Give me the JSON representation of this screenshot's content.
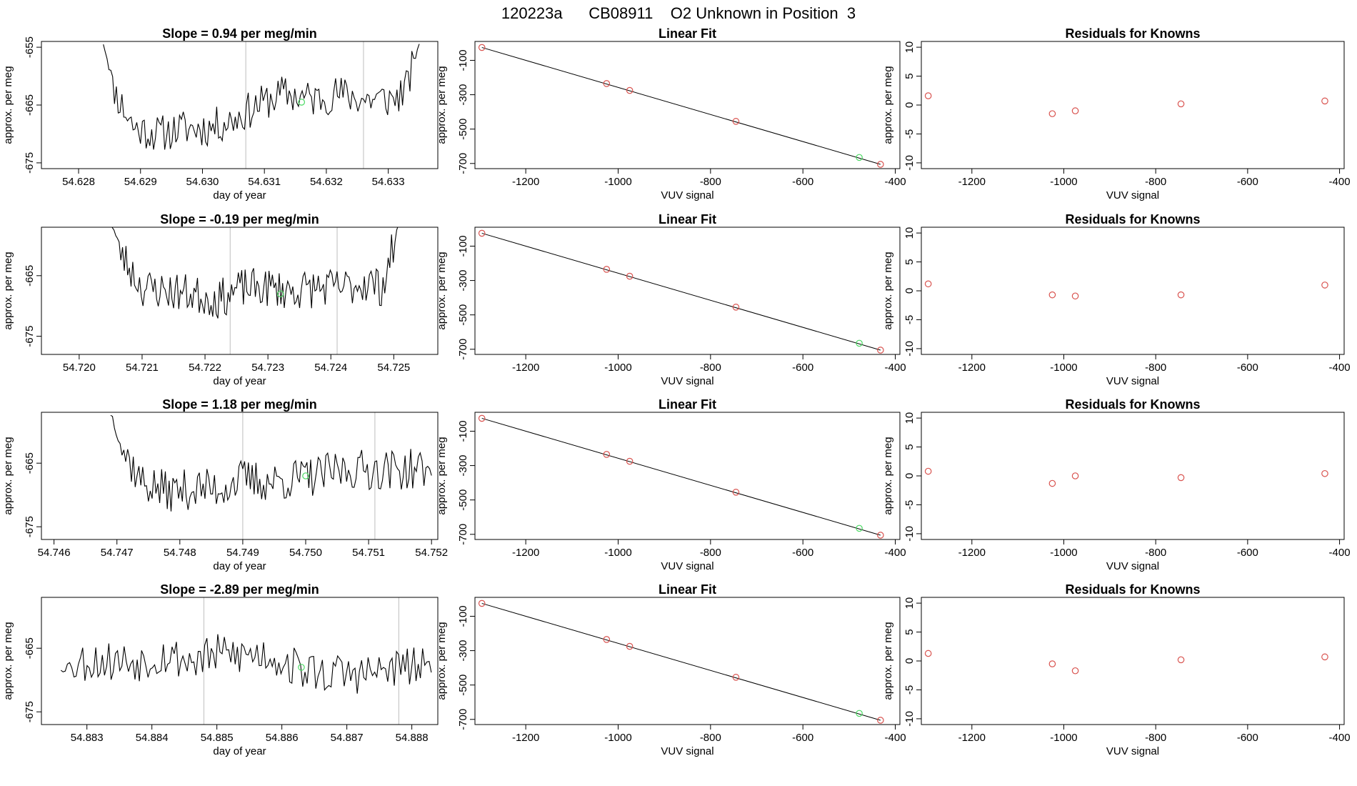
{
  "page_title": "120223a      CB08911    O2 Unknown in Position  3",
  "colors": {
    "trace": "#000000",
    "marker_known": "#d9534f",
    "marker_unknown": "#4cd964",
    "vline": "#c8c8c8"
  },
  "chart_data": [
    {
      "type": "line",
      "row": 0,
      "panel": "time",
      "title": "Slope =  0.94  per meg/min",
      "xlabel": "day of year",
      "ylabel": "approx. per meg",
      "xlim": [
        54.6274,
        54.6338
      ],
      "ylim": [
        -676,
        -654
      ],
      "xticks": [
        "54.628",
        "54.629",
        "54.630",
        "54.631",
        "54.632",
        "54.633"
      ],
      "yticks": [
        "-655",
        "-665",
        "-675"
      ],
      "vlines": [
        54.6307,
        54.6326
      ],
      "green_point": [
        54.6316,
        -664.5
      ],
      "trace_start": 54.6284,
      "trace_end": 54.6335,
      "trace_seed": 11,
      "trace_profile": [
        [
          54.6284,
          -654
        ],
        [
          54.6286,
          -663
        ],
        [
          54.6289,
          -669
        ],
        [
          54.6293,
          -670
        ],
        [
          54.6297,
          -669
        ],
        [
          54.6301,
          -669
        ],
        [
          54.6305,
          -667.5
        ],
        [
          54.6309,
          -665
        ],
        [
          54.6313,
          -663
        ],
        [
          54.6318,
          -664
        ],
        [
          54.6322,
          -663
        ],
        [
          54.6326,
          -664
        ],
        [
          54.6329,
          -664
        ],
        [
          54.6331,
          -664
        ],
        [
          54.6333,
          -662
        ],
        [
          54.6335,
          -654
        ]
      ]
    },
    {
      "type": "scatter",
      "row": 0,
      "panel": "fit",
      "title": "Linear Fit",
      "xlabel": "VUV signal",
      "ylabel": "approx. per meg",
      "xlim": [
        -1310,
        -390
      ],
      "ylim": [
        -730,
        10
      ],
      "xticks": [
        "-1200",
        "-1000",
        "-800",
        "-600",
        "-400"
      ],
      "yticks": [
        "-100",
        "-300",
        "-500",
        "-700"
      ],
      "fit_line": [
        [
          -1295,
          -25
        ],
        [
          -432,
          -705
        ]
      ],
      "known_points": [
        [
          -1295,
          -25
        ],
        [
          -1025,
          -235
        ],
        [
          -975,
          -275
        ],
        [
          -745,
          -455
        ],
        [
          -432,
          -705
        ]
      ],
      "unknown_point": [
        -478,
        -665
      ]
    },
    {
      "type": "scatter",
      "row": 0,
      "panel": "residuals",
      "title": "Residuals for Knowns",
      "xlabel": "VUV signal",
      "ylabel": "approx. per meg",
      "xlim": [
        -1310,
        -390
      ],
      "ylim": [
        -11,
        11
      ],
      "xticks": [
        "-1200",
        "-1000",
        "-800",
        "-600",
        "-400"
      ],
      "yticks": [
        "10",
        "5",
        "0",
        "-5",
        "-10"
      ],
      "points": [
        [
          -1295,
          1.6
        ],
        [
          -1025,
          -1.5
        ],
        [
          -975,
          -1.0
        ],
        [
          -745,
          0.2
        ],
        [
          -432,
          0.7
        ]
      ]
    },
    {
      "type": "line",
      "row": 1,
      "panel": "time",
      "title": "Slope =  -0.19  per meg/min",
      "xlabel": "day of year",
      "ylabel": "approx. per meg",
      "xlim": [
        54.7194,
        54.7257
      ],
      "ylim": [
        -678,
        -657
      ],
      "xticks": [
        "54.720",
        "54.721",
        "54.722",
        "54.723",
        "54.724",
        "54.725"
      ],
      "yticks": [
        "-665",
        "-675"
      ],
      "vlines": [
        54.7224,
        54.7241
      ],
      "green_point": [
        54.7232,
        -668
      ],
      "trace_start": 54.7205,
      "trace_end": 54.7251,
      "trace_seed": 23,
      "trace_profile": [
        [
          54.7205,
          -656
        ],
        [
          54.7207,
          -662
        ],
        [
          54.721,
          -667
        ],
        [
          54.7214,
          -667.5
        ],
        [
          54.7218,
          -668
        ],
        [
          54.7222,
          -669
        ],
        [
          54.7226,
          -667
        ],
        [
          54.723,
          -667
        ],
        [
          54.7234,
          -667.5
        ],
        [
          54.7238,
          -667
        ],
        [
          54.7242,
          -667
        ],
        [
          54.7246,
          -666
        ],
        [
          54.7248,
          -667
        ],
        [
          54.7249,
          -664
        ],
        [
          54.7251,
          -656
        ]
      ]
    },
    {
      "type": "scatter",
      "row": 1,
      "panel": "fit",
      "title": "Linear Fit",
      "xlabel": "VUV signal",
      "ylabel": "approx. per meg",
      "xlim": [
        -1310,
        -390
      ],
      "ylim": [
        -730,
        10
      ],
      "xticks": [
        "-1200",
        "-1000",
        "-800",
        "-600",
        "-400"
      ],
      "yticks": [
        "-100",
        "-300",
        "-500",
        "-700"
      ],
      "fit_line": [
        [
          -1295,
          -25
        ],
        [
          -432,
          -705
        ]
      ],
      "known_points": [
        [
          -1295,
          -25
        ],
        [
          -1025,
          -235
        ],
        [
          -975,
          -275
        ],
        [
          -745,
          -455
        ],
        [
          -432,
          -705
        ]
      ],
      "unknown_point": [
        -478,
        -665
      ]
    },
    {
      "type": "scatter",
      "row": 1,
      "panel": "residuals",
      "title": "Residuals for Knowns",
      "xlabel": "VUV signal",
      "ylabel": "approx. per meg",
      "xlim": [
        -1310,
        -390
      ],
      "ylim": [
        -11,
        11
      ],
      "xticks": [
        "-1200",
        "-1000",
        "-800",
        "-600",
        "-400"
      ],
      "yticks": [
        "10",
        "5",
        "0",
        "-5",
        "-10"
      ],
      "points": [
        [
          -1295,
          1.2
        ],
        [
          -1025,
          -0.7
        ],
        [
          -975,
          -0.9
        ],
        [
          -745,
          -0.7
        ],
        [
          -432,
          1.0
        ]
      ]
    },
    {
      "type": "line",
      "row": 2,
      "panel": "time",
      "title": "Slope =  1.18  per meg/min",
      "xlabel": "day of year",
      "ylabel": "approx. per meg",
      "xlim": [
        54.7458,
        54.7521
      ],
      "ylim": [
        -677,
        -657
      ],
      "xticks": [
        "54.746",
        "54.747",
        "54.748",
        "54.749",
        "54.750",
        "54.751",
        "54.752"
      ],
      "yticks": [
        "-665",
        "-675"
      ],
      "vlines": [
        54.749,
        54.7511
      ],
      "green_point": [
        54.75,
        -667
      ],
      "trace_start": 54.7469,
      "trace_end": 54.752,
      "trace_seed": 37,
      "trace_profile": [
        [
          54.7469,
          -657
        ],
        [
          54.7471,
          -663
        ],
        [
          54.7474,
          -668
        ],
        [
          54.7478,
          -669.5
        ],
        [
          54.7482,
          -669
        ],
        [
          54.7486,
          -669
        ],
        [
          54.749,
          -667.5
        ],
        [
          54.7494,
          -668
        ],
        [
          54.7498,
          -667.5
        ],
        [
          54.7502,
          -667
        ],
        [
          54.7506,
          -666
        ],
        [
          54.751,
          -666
        ],
        [
          54.7514,
          -666
        ],
        [
          54.7518,
          -666
        ],
        [
          54.752,
          -666
        ]
      ]
    },
    {
      "type": "scatter",
      "row": 2,
      "panel": "fit",
      "title": "Linear Fit",
      "xlabel": "VUV signal",
      "ylabel": "approx. per meg",
      "xlim": [
        -1310,
        -390
      ],
      "ylim": [
        -730,
        10
      ],
      "xticks": [
        "-1200",
        "-1000",
        "-800",
        "-600",
        "-400"
      ],
      "yticks": [
        "-100",
        "-300",
        "-500",
        "-700"
      ],
      "fit_line": [
        [
          -1295,
          -25
        ],
        [
          -432,
          -705
        ]
      ],
      "known_points": [
        [
          -1295,
          -25
        ],
        [
          -1025,
          -235
        ],
        [
          -975,
          -275
        ],
        [
          -745,
          -455
        ],
        [
          -432,
          -705
        ]
      ],
      "unknown_point": [
        -478,
        -665
      ]
    },
    {
      "type": "scatter",
      "row": 2,
      "panel": "residuals",
      "title": "Residuals for Knowns",
      "xlabel": "VUV signal",
      "ylabel": "approx. per meg",
      "xlim": [
        -1310,
        -390
      ],
      "ylim": [
        -11,
        11
      ],
      "xticks": [
        "-1200",
        "-1000",
        "-800",
        "-600",
        "-400"
      ],
      "yticks": [
        "10",
        "5",
        "0",
        "-5",
        "-10"
      ],
      "points": [
        [
          -1295,
          0.8
        ],
        [
          -1025,
          -1.3
        ],
        [
          -975,
          0.0
        ],
        [
          -745,
          -0.3
        ],
        [
          -432,
          0.4
        ]
      ]
    },
    {
      "type": "line",
      "row": 3,
      "panel": "time",
      "title": "Slope =  -2.89  per meg/min",
      "xlabel": "day of year",
      "ylabel": "approx. per meg",
      "xlim": [
        54.8823,
        54.8884
      ],
      "ylim": [
        -677,
        -657
      ],
      "xticks": [
        "54.883",
        "54.884",
        "54.885",
        "54.886",
        "54.887",
        "54.888"
      ],
      "yticks": [
        "-665",
        "-675"
      ],
      "vlines": [
        54.8848,
        54.8878
      ],
      "green_point": [
        54.8863,
        -668
      ],
      "trace_start": 54.8826,
      "trace_end": 54.8883,
      "trace_seed": 53,
      "trace_profile": [
        [
          54.8826,
          -668
        ],
        [
          54.883,
          -667
        ],
        [
          54.8834,
          -667
        ],
        [
          54.8838,
          -667
        ],
        [
          54.8842,
          -666
        ],
        [
          54.8846,
          -667
        ],
        [
          54.885,
          -666
        ],
        [
          54.8854,
          -666
        ],
        [
          54.8858,
          -666
        ],
        [
          54.8862,
          -668
        ],
        [
          54.8866,
          -669
        ],
        [
          54.887,
          -669
        ],
        [
          54.8874,
          -669
        ],
        [
          54.8878,
          -668
        ],
        [
          54.8883,
          -668
        ]
      ]
    },
    {
      "type": "scatter",
      "row": 3,
      "panel": "fit",
      "title": "Linear Fit",
      "xlabel": "VUV signal",
      "ylabel": "approx. per meg",
      "xlim": [
        -1310,
        -390
      ],
      "ylim": [
        -730,
        10
      ],
      "xticks": [
        "-1200",
        "-1000",
        "-800",
        "-600",
        "-400"
      ],
      "yticks": [
        "-100",
        "-300",
        "-500",
        "-700"
      ],
      "fit_line": [
        [
          -1295,
          -25
        ],
        [
          -432,
          -705
        ]
      ],
      "known_points": [
        [
          -1295,
          -25
        ],
        [
          -1025,
          -235
        ],
        [
          -975,
          -275
        ],
        [
          -745,
          -455
        ],
        [
          -432,
          -705
        ]
      ],
      "unknown_point": [
        -478,
        -665
      ]
    },
    {
      "type": "scatter",
      "row": 3,
      "panel": "residuals",
      "title": "Residuals for Knowns",
      "xlabel": "VUV signal",
      "ylabel": "approx. per meg",
      "xlim": [
        -1310,
        -390
      ],
      "ylim": [
        -11,
        11
      ],
      "xticks": [
        "-1200",
        "-1000",
        "-800",
        "-600",
        "-400"
      ],
      "yticks": [
        "10",
        "5",
        "0",
        "-5",
        "-10"
      ],
      "points": [
        [
          -1295,
          1.3
        ],
        [
          -1025,
          -0.5
        ],
        [
          -975,
          -1.7
        ],
        [
          -745,
          0.2
        ],
        [
          -432,
          0.7
        ]
      ]
    }
  ]
}
